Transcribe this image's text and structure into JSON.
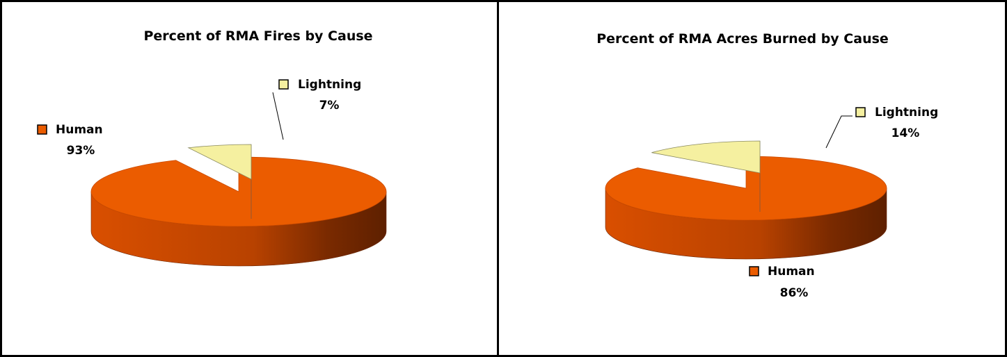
{
  "chart_data": [
    {
      "type": "pie",
      "style": "3d-exploded",
      "title": "Percent of RMA Fires by Cause",
      "categories": [
        "Human",
        "Lightning"
      ],
      "values": [
        93,
        7
      ],
      "data_labels": [
        "93%",
        "7%"
      ],
      "colors": [
        "#EB5C00",
        "#F5F0A0"
      ],
      "legend": "inline-labels"
    },
    {
      "type": "pie",
      "style": "3d-exploded",
      "title": "Percent of RMA Acres Burned by Cause",
      "categories": [
        "Human",
        "Lightning"
      ],
      "values": [
        86,
        14
      ],
      "data_labels": [
        "86%",
        "14%"
      ],
      "colors": [
        "#EB5C00",
        "#F5F0A0"
      ],
      "legend": "inline-labels"
    }
  ]
}
